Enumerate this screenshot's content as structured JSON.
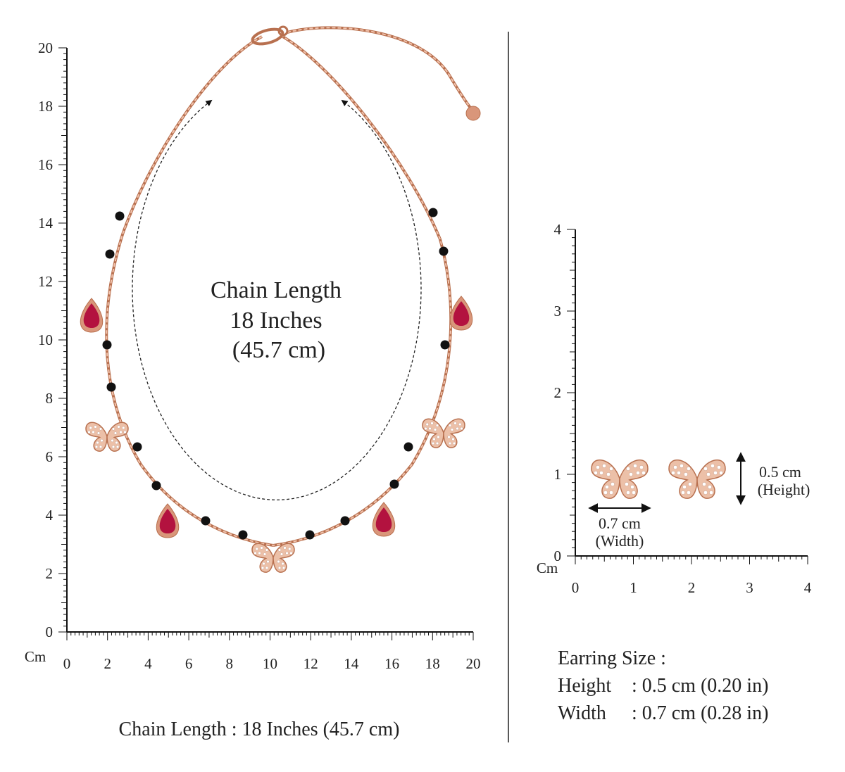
{
  "left_ruler": {
    "unit": "Cm",
    "y_labels": [
      0,
      2,
      4,
      6,
      8,
      10,
      12,
      14,
      16,
      18,
      20
    ],
    "x_labels": [
      0,
      2,
      4,
      6,
      8,
      10,
      12,
      14,
      16,
      18,
      20
    ]
  },
  "chain_label": [
    "Chain Length",
    "18 Inches",
    "(45.7 cm)"
  ],
  "caption": "Chain Length : 18 Inches (45.7 cm)",
  "right_ruler": {
    "unit": "Cm",
    "y_labels": [
      0,
      1,
      2,
      3,
      4
    ],
    "x_labels": [
      0,
      1,
      2,
      3,
      4
    ]
  },
  "earring_dims": {
    "height": "0.5 cm",
    "height_note": "(Height)",
    "width": "0.7 cm",
    "width_note": "(Width)"
  },
  "earring_size": {
    "title": "Earring Size :",
    "rows": [
      [
        "Height",
        ": 0.5 cm (0.20 in)"
      ],
      [
        "Width",
        ": 0.7 cm (0.28 in)"
      ]
    ]
  }
}
